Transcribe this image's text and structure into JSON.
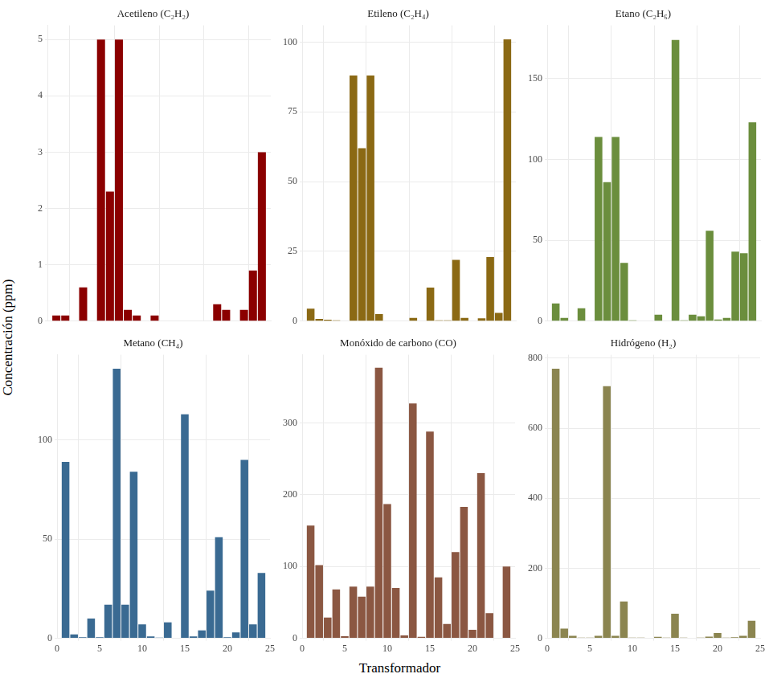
{
  "x_label": "Transformador",
  "y_label": "Concentración (ppm)",
  "chart_data": [
    {
      "type": "bar",
      "title": "Acetileno (C₂H₂)",
      "color": "#8b0000",
      "grid": true,
      "tick_labels": "y",
      "x": [
        1,
        2,
        3,
        4,
        5,
        6,
        7,
        8,
        9,
        10,
        11,
        12,
        13,
        14,
        15,
        16,
        17,
        18,
        19,
        20,
        21,
        22,
        23,
        24
      ],
      "values": [
        0.1,
        0.1,
        0,
        0.6,
        0,
        5,
        2.3,
        5,
        0.2,
        0.1,
        0,
        0.1,
        0,
        0,
        0,
        0,
        0,
        0,
        0.3,
        0.2,
        0,
        0.2,
        0.9,
        3
      ],
      "xlim": [
        0,
        25
      ],
      "xticks": [
        0,
        5,
        10,
        15,
        20,
        25
      ],
      "ylim": [
        0,
        5.25
      ],
      "yticks": [
        0,
        1,
        2,
        3,
        4,
        5
      ]
    },
    {
      "type": "bar",
      "title": "Etileno (C₂H₄)",
      "color": "#8b6914",
      "grid": true,
      "tick_labels": "y",
      "x": [
        1,
        2,
        3,
        4,
        5,
        6,
        7,
        8,
        9,
        10,
        11,
        12,
        13,
        14,
        15,
        16,
        17,
        18,
        19,
        20,
        21,
        22,
        23,
        24
      ],
      "values": [
        4.5,
        0.8,
        0.5,
        0.3,
        0,
        88,
        62,
        88,
        2.5,
        0,
        0,
        0,
        1.2,
        0,
        12,
        0.3,
        0.3,
        22,
        1.2,
        0,
        1,
        23,
        3,
        101
      ],
      "xlim": [
        0,
        25
      ],
      "xticks": [
        0,
        5,
        10,
        15,
        20,
        25
      ],
      "ylim": [
        0,
        106
      ],
      "yticks": [
        0,
        25,
        50,
        75,
        100
      ]
    },
    {
      "type": "bar",
      "title": "Etano (C₂H₆)",
      "color": "#6b8e3d",
      "grid": true,
      "tick_labels": "y",
      "x": [
        1,
        2,
        3,
        4,
        5,
        6,
        7,
        8,
        9,
        10,
        11,
        12,
        13,
        14,
        15,
        16,
        17,
        18,
        19,
        20,
        21,
        22,
        23,
        24
      ],
      "values": [
        11,
        2,
        0,
        8,
        0,
        114,
        86,
        114,
        36,
        0.5,
        0,
        0,
        4,
        0,
        174,
        0.5,
        4,
        3,
        56,
        1,
        2,
        43,
        42,
        123
      ],
      "xlim": [
        0,
        25
      ],
      "xticks": [
        0,
        5,
        10,
        15,
        20,
        25
      ],
      "ylim": [
        0,
        183
      ],
      "yticks": [
        0,
        50,
        100,
        150
      ]
    },
    {
      "type": "bar",
      "title": "Metano (CH₄)",
      "color": "#3a6a92",
      "grid": true,
      "x": [
        1,
        2,
        3,
        4,
        5,
        6,
        7,
        8,
        9,
        10,
        11,
        12,
        13,
        14,
        15,
        16,
        17,
        18,
        19,
        20,
        21,
        22,
        23,
        24
      ],
      "values": [
        89,
        2,
        0.5,
        10,
        0.5,
        17,
        136,
        17,
        84,
        7,
        1,
        0.3,
        8,
        0,
        113,
        1,
        4,
        24,
        51,
        0.5,
        3,
        90,
        7,
        33
      ],
      "xlim": [
        0,
        25
      ],
      "xticks": [
        0,
        5,
        10,
        15,
        20,
        25
      ],
      "ylim": [
        0,
        143
      ],
      "yticks": [
        0,
        50,
        100
      ]
    },
    {
      "type": "bar",
      "title": "Monóxido de carbono (CO)",
      "color": "#8b5742",
      "grid": true,
      "x": [
        1,
        2,
        3,
        4,
        5,
        6,
        7,
        8,
        9,
        10,
        11,
        12,
        13,
        14,
        15,
        16,
        17,
        18,
        19,
        20,
        21,
        22,
        23,
        24
      ],
      "values": [
        157,
        102,
        29,
        68,
        3,
        72,
        58,
        72,
        377,
        187,
        70,
        4,
        327,
        2,
        288,
        85,
        20,
        120,
        183,
        12,
        230,
        35,
        0,
        100
      ],
      "xlim": [
        0,
        25
      ],
      "xticks": [
        0,
        5,
        10,
        15,
        20,
        25
      ],
      "ylim": [
        0,
        395
      ],
      "yticks": [
        0,
        100,
        200,
        300
      ]
    },
    {
      "type": "bar",
      "title": "Hidrógeno (H₂)",
      "color": "#8b8550",
      "grid": true,
      "x": [
        1,
        2,
        3,
        4,
        5,
        6,
        7,
        8,
        9,
        10,
        11,
        12,
        13,
        14,
        15,
        16,
        17,
        18,
        19,
        20,
        21,
        22,
        23,
        24
      ],
      "values": [
        770,
        28,
        7,
        2,
        2,
        7,
        720,
        7,
        105,
        2,
        2,
        0,
        4,
        2,
        70,
        2,
        0,
        2,
        5,
        15,
        2,
        3,
        7,
        50
      ],
      "xlim": [
        0,
        25
      ],
      "xticks": [
        0,
        5,
        10,
        15,
        20,
        25
      ],
      "ylim": [
        0,
        810
      ],
      "yticks": [
        0,
        200,
        400,
        600,
        800
      ]
    }
  ]
}
